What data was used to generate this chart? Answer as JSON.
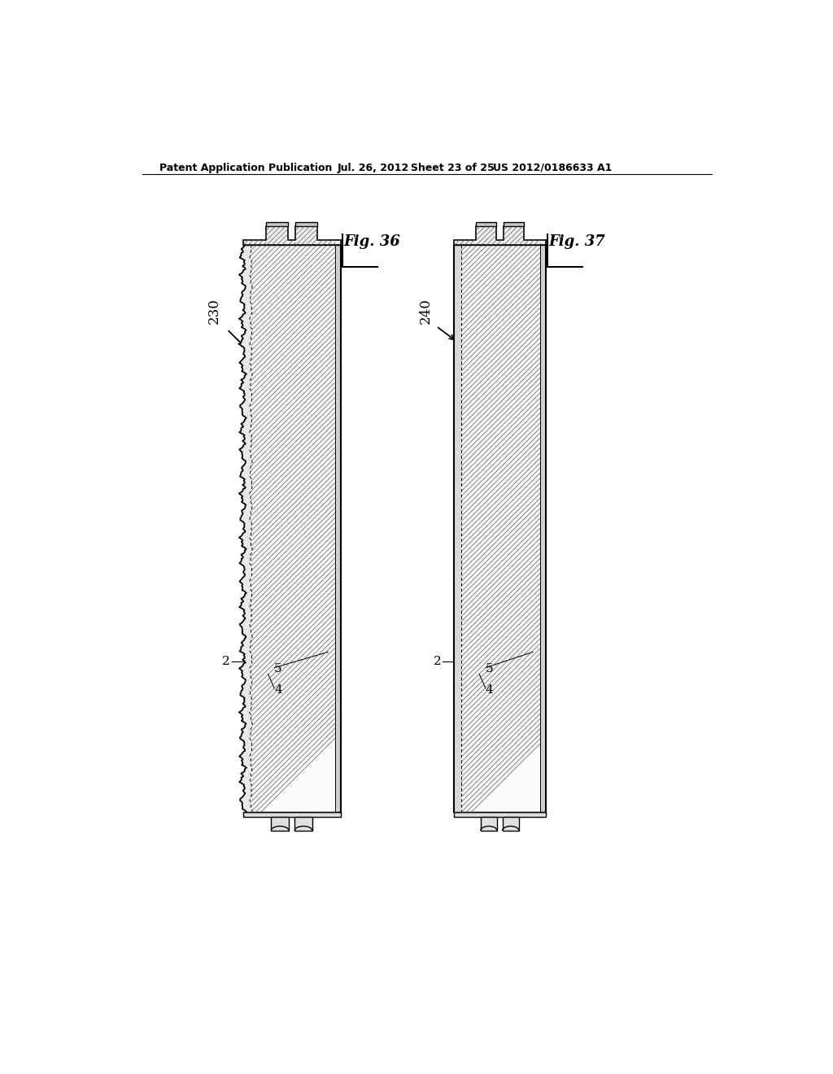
{
  "background_color": "#ffffff",
  "header_text": "Patent Application Publication",
  "header_date": "Jul. 26, 2012",
  "header_sheet": "Sheet 23 of 25",
  "header_patent": "US 2012/0186633 A1",
  "fig1_label": "Fig. 36",
  "fig2_label": "Fig. 37",
  "panel1_label": "230",
  "panel2_label": "240",
  "line_color": "#000000",
  "hatch_color": "#444444",
  "panel_fill": "#ffffff",
  "left_skin_color": "#e0e0e0",
  "right_skin_color": "#d0d0d0",
  "tooth_fill": "#d8d8d8"
}
